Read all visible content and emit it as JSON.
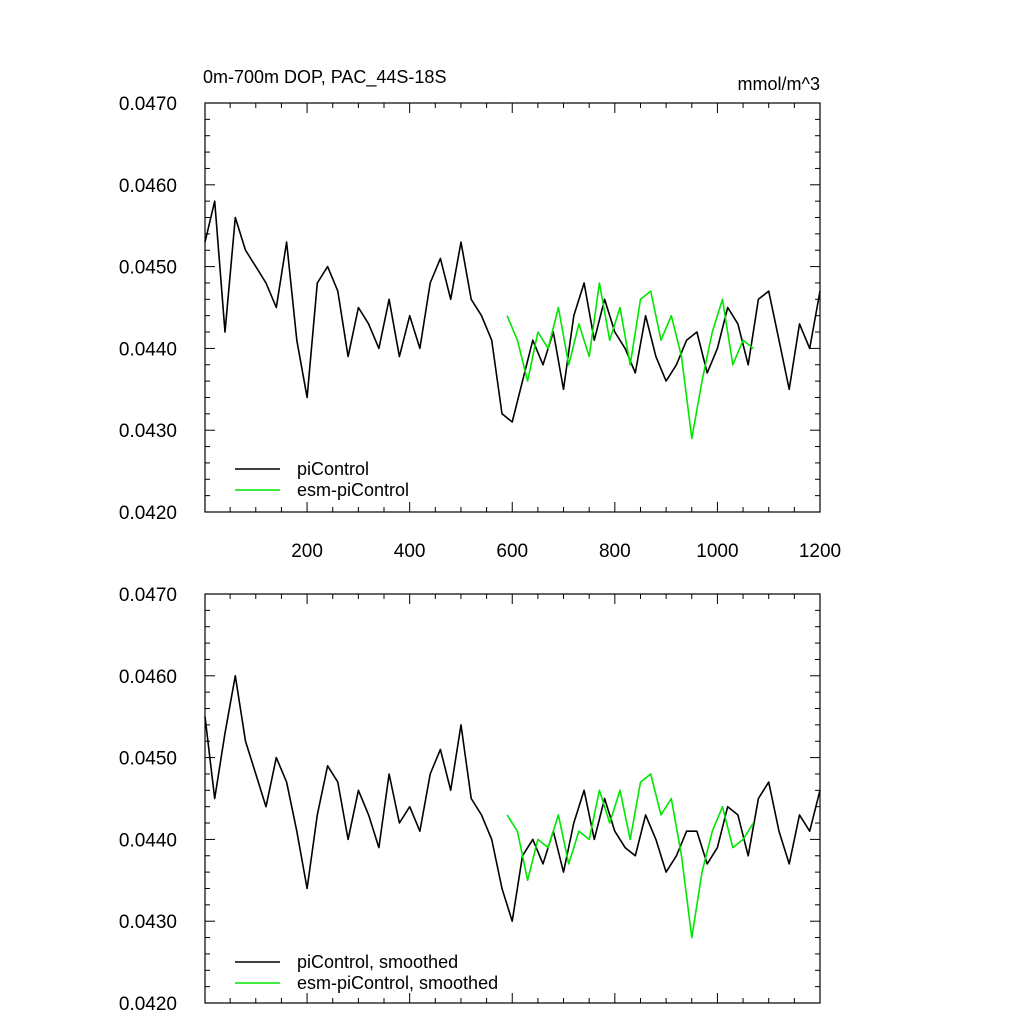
{
  "figure": {
    "title_left": "0m-700m DOP, PAC_44S-18S",
    "title_right": "mmol/m^3",
    "colors": {
      "piControl": "#000000",
      "esm_piControl": "#00e600"
    }
  },
  "chart_data": [
    {
      "type": "line",
      "panel": "top",
      "xlim": [
        1,
        1200
      ],
      "ylim": [
        0.042,
        0.047
      ],
      "x_ticks": [
        200,
        400,
        600,
        800,
        1000,
        1200
      ],
      "y_ticks": [
        "0.0420",
        "0.0430",
        "0.0440",
        "0.0450",
        "0.0460",
        "0.0470"
      ],
      "y_tick_values": [
        0.042,
        0.043,
        0.044,
        0.045,
        0.046,
        0.047
      ],
      "legend_position": "bottom-left",
      "series": [
        {
          "name": "piControl",
          "color": "#000000",
          "x": [
            1,
            20,
            40,
            60,
            80,
            100,
            120,
            140,
            160,
            180,
            200,
            220,
            240,
            260,
            280,
            300,
            320,
            340,
            360,
            380,
            400,
            420,
            440,
            460,
            480,
            500,
            520,
            540,
            560,
            580,
            600,
            620,
            640,
            660,
            680,
            700,
            720,
            740,
            760,
            780,
            800,
            820,
            840,
            860,
            880,
            900,
            920,
            940,
            960,
            980,
            1000,
            1020,
            1040,
            1060,
            1080,
            1100,
            1120,
            1140,
            1160,
            1180,
            1200
          ],
          "y": [
            0.0453,
            0.0458,
            0.0442,
            0.0456,
            0.0452,
            0.045,
            0.0448,
            0.0445,
            0.0453,
            0.0441,
            0.0434,
            0.0448,
            0.045,
            0.0447,
            0.0439,
            0.0445,
            0.0443,
            0.044,
            0.0446,
            0.0439,
            0.0444,
            0.044,
            0.0448,
            0.0451,
            0.0446,
            0.0453,
            0.0446,
            0.0444,
            0.0441,
            0.0432,
            0.0431,
            0.0436,
            0.0441,
            0.0438,
            0.0442,
            0.0435,
            0.0444,
            0.0448,
            0.0441,
            0.0446,
            0.0442,
            0.044,
            0.0437,
            0.0444,
            0.0439,
            0.0436,
            0.0438,
            0.0441,
            0.0442,
            0.0437,
            0.044,
            0.0445,
            0.0443,
            0.0438,
            0.0446,
            0.0447,
            0.0441,
            0.0435,
            0.0443,
            0.044,
            0.0447
          ]
        },
        {
          "name": "esm-piControl",
          "color": "#00e600",
          "x": [
            590,
            610,
            630,
            650,
            670,
            690,
            710,
            730,
            750,
            770,
            790,
            810,
            830,
            850,
            870,
            890,
            910,
            930,
            950,
            970,
            990,
            1010,
            1030,
            1050,
            1070
          ],
          "y": [
            0.0444,
            0.0441,
            0.0436,
            0.0442,
            0.044,
            0.0445,
            0.0438,
            0.0443,
            0.0439,
            0.0448,
            0.0441,
            0.0445,
            0.0438,
            0.0446,
            0.0447,
            0.0441,
            0.0444,
            0.0439,
            0.0429,
            0.0436,
            0.0442,
            0.0446,
            0.0438,
            0.0441,
            0.044
          ]
        }
      ]
    },
    {
      "type": "line",
      "panel": "bottom",
      "xlim": [
        1,
        1200
      ],
      "ylim": [
        0.042,
        0.047
      ],
      "y_ticks": [
        "0.0420",
        "0.0430",
        "0.0440",
        "0.0450",
        "0.0460",
        "0.0470"
      ],
      "y_tick_values": [
        0.042,
        0.043,
        0.044,
        0.045,
        0.046,
        0.047
      ],
      "legend_position": "bottom-left",
      "series": [
        {
          "name": "piControl, smoothed",
          "color": "#000000",
          "x": [
            1,
            20,
            40,
            60,
            80,
            100,
            120,
            140,
            160,
            180,
            200,
            220,
            240,
            260,
            280,
            300,
            320,
            340,
            360,
            380,
            400,
            420,
            440,
            460,
            480,
            500,
            520,
            540,
            560,
            580,
            600,
            620,
            640,
            660,
            680,
            700,
            720,
            740,
            760,
            780,
            800,
            820,
            840,
            860,
            880,
            900,
            920,
            940,
            960,
            980,
            1000,
            1020,
            1040,
            1060,
            1080,
            1100,
            1120,
            1140,
            1160,
            1180,
            1200
          ],
          "y": [
            0.0455,
            0.0445,
            0.0453,
            0.046,
            0.0452,
            0.0448,
            0.0444,
            0.045,
            0.0447,
            0.0441,
            0.0434,
            0.0443,
            0.0449,
            0.0447,
            0.044,
            0.0446,
            0.0443,
            0.0439,
            0.0448,
            0.0442,
            0.0444,
            0.0441,
            0.0448,
            0.0451,
            0.0446,
            0.0454,
            0.0445,
            0.0443,
            0.044,
            0.0434,
            0.043,
            0.0438,
            0.044,
            0.0437,
            0.0441,
            0.0436,
            0.0442,
            0.0446,
            0.044,
            0.0445,
            0.0441,
            0.0439,
            0.0438,
            0.0443,
            0.044,
            0.0436,
            0.0438,
            0.0441,
            0.0441,
            0.0437,
            0.0439,
            0.0444,
            0.0443,
            0.0438,
            0.0445,
            0.0447,
            0.0441,
            0.0437,
            0.0443,
            0.0441,
            0.0446
          ]
        },
        {
          "name": "esm-piControl, smoothed",
          "color": "#00e600",
          "x": [
            590,
            610,
            630,
            650,
            670,
            690,
            710,
            730,
            750,
            770,
            790,
            810,
            830,
            850,
            870,
            890,
            910,
            930,
            950,
            970,
            990,
            1010,
            1030,
            1050,
            1070
          ],
          "y": [
            0.0443,
            0.0441,
            0.0435,
            0.044,
            0.0439,
            0.0443,
            0.0437,
            0.0441,
            0.044,
            0.0446,
            0.0442,
            0.0446,
            0.044,
            0.0447,
            0.0448,
            0.0443,
            0.0445,
            0.0438,
            0.0428,
            0.0436,
            0.0441,
            0.0444,
            0.0439,
            0.044,
            0.0442
          ]
        }
      ]
    }
  ]
}
